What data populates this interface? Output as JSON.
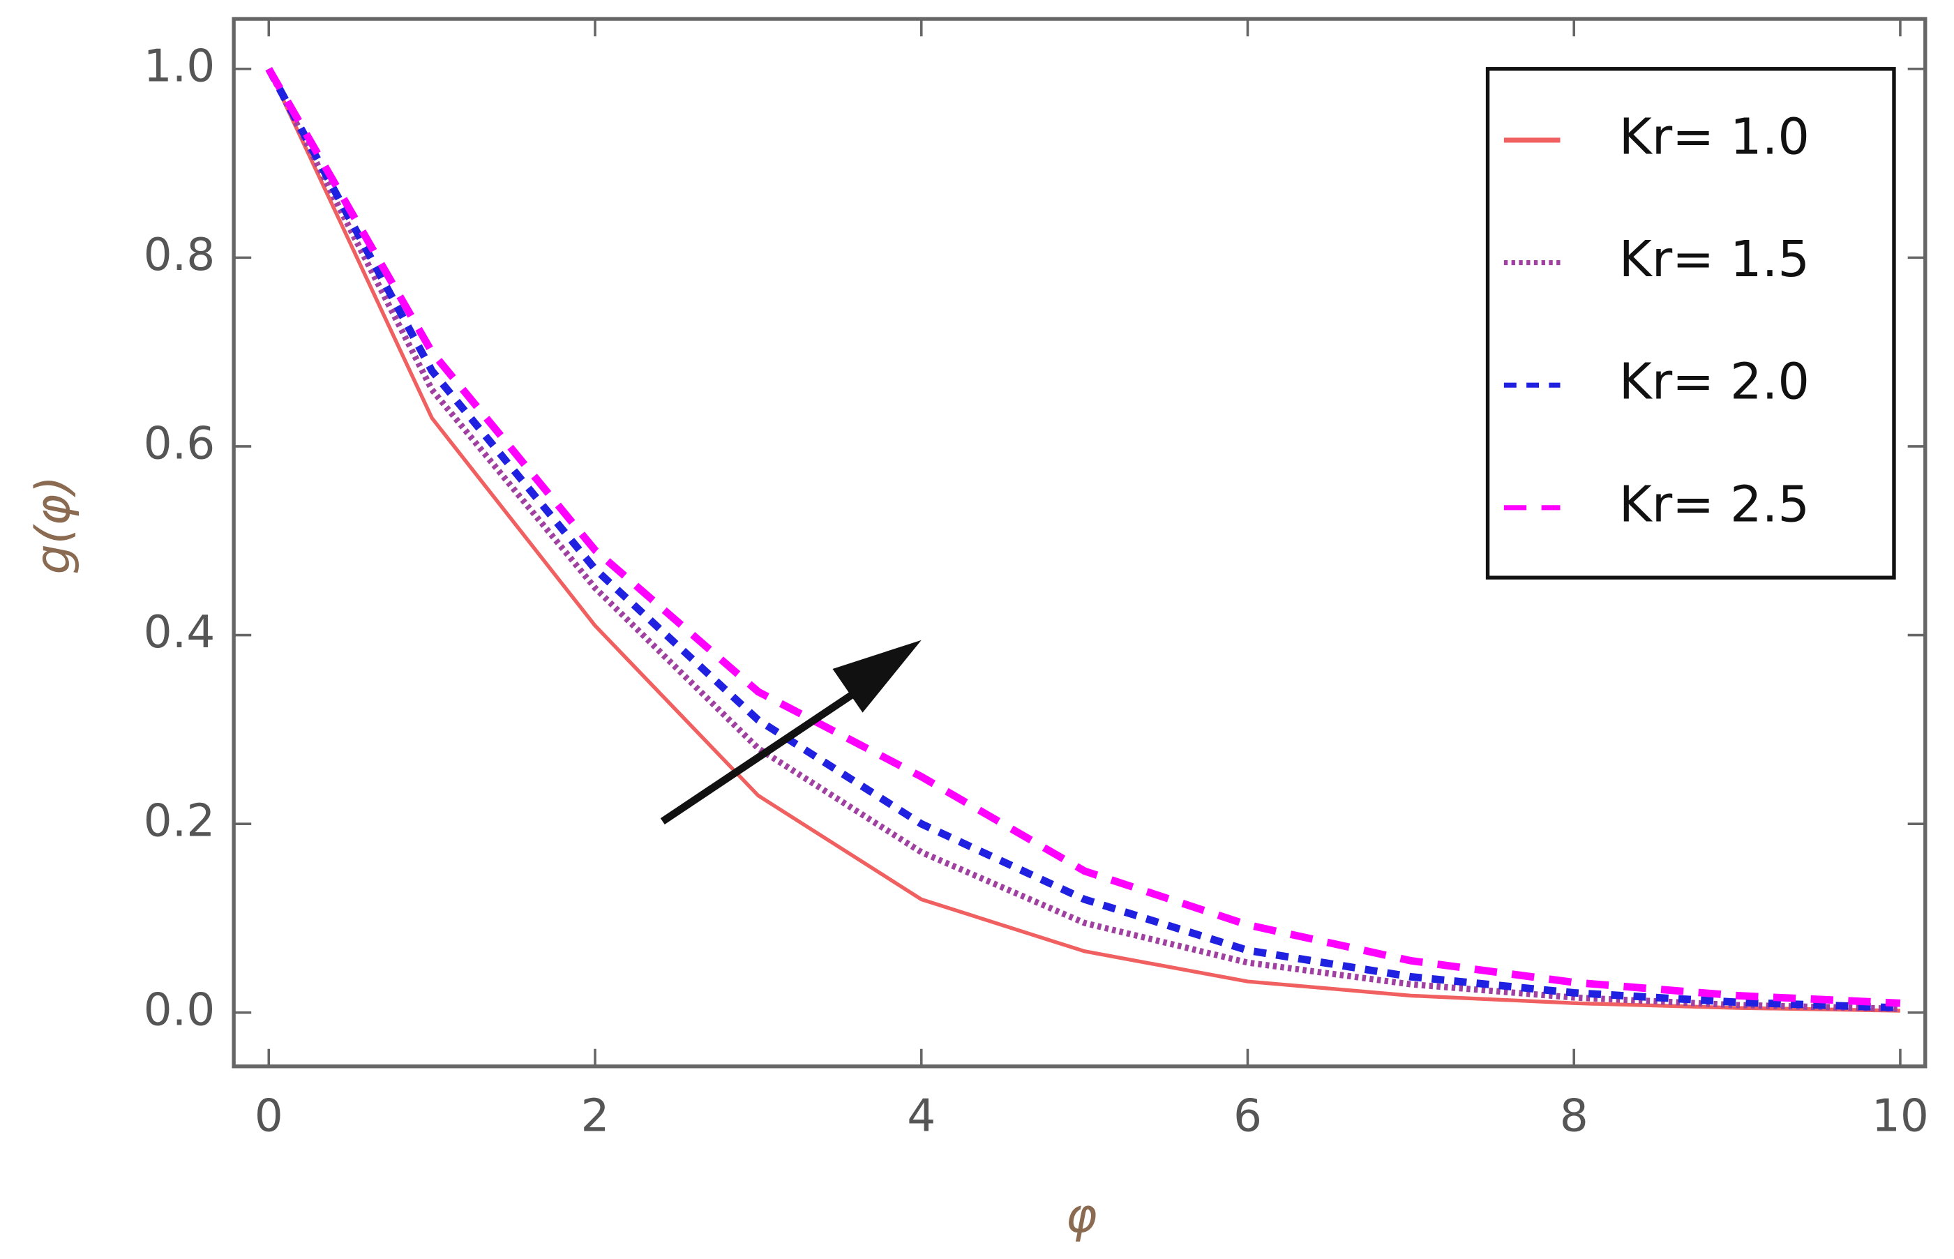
{
  "chart_data": {
    "type": "line",
    "x_label": "φ",
    "y_label": "g(φ)",
    "x": [
      0,
      1,
      2,
      3,
      4,
      5,
      6,
      7,
      8,
      9,
      10
    ],
    "series": [
      {
        "name": "Kr= 1.0",
        "color": "#f06060",
        "values": [
          1,
          0.63,
          0.41,
          0.23,
          0.12,
          0.065,
          0.033,
          0.018,
          0.01,
          0.005,
          0.002
        ]
      },
      {
        "name": "Kr= 1.5",
        "color": "#a040a0",
        "values": [
          1,
          0.66,
          0.45,
          0.28,
          0.17,
          0.095,
          0.053,
          0.03,
          0.016,
          0.008,
          0.004
        ]
      },
      {
        "name": "Kr= 2.0",
        "color": "#2020e0",
        "values": [
          1,
          0.68,
          0.47,
          0.31,
          0.2,
          0.12,
          0.066,
          0.038,
          0.021,
          0.011,
          0.005
        ]
      },
      {
        "name": "Kr= 2.5",
        "color": "#ff00ff",
        "values": [
          1,
          0.7,
          0.49,
          0.34,
          0.25,
          0.15,
          0.093,
          0.055,
          0.032,
          0.018,
          0.01
        ]
      }
    ],
    "xlim": [
      0,
      10
    ],
    "xticks": [
      0,
      2,
      4,
      6,
      8,
      10
    ],
    "ylim": [
      0,
      1
    ],
    "yticks": [
      {
        "value": 0,
        "label": "0.0"
      },
      {
        "value": 0.2,
        "label": "0.2"
      },
      {
        "value": 0.4,
        "label": "0.4"
      },
      {
        "value": 0.6,
        "label": "0.6"
      },
      {
        "value": 0.8,
        "label": "0.8"
      },
      {
        "value": 1,
        "label": "1.0"
      }
    ],
    "legend": "upper right"
  }
}
